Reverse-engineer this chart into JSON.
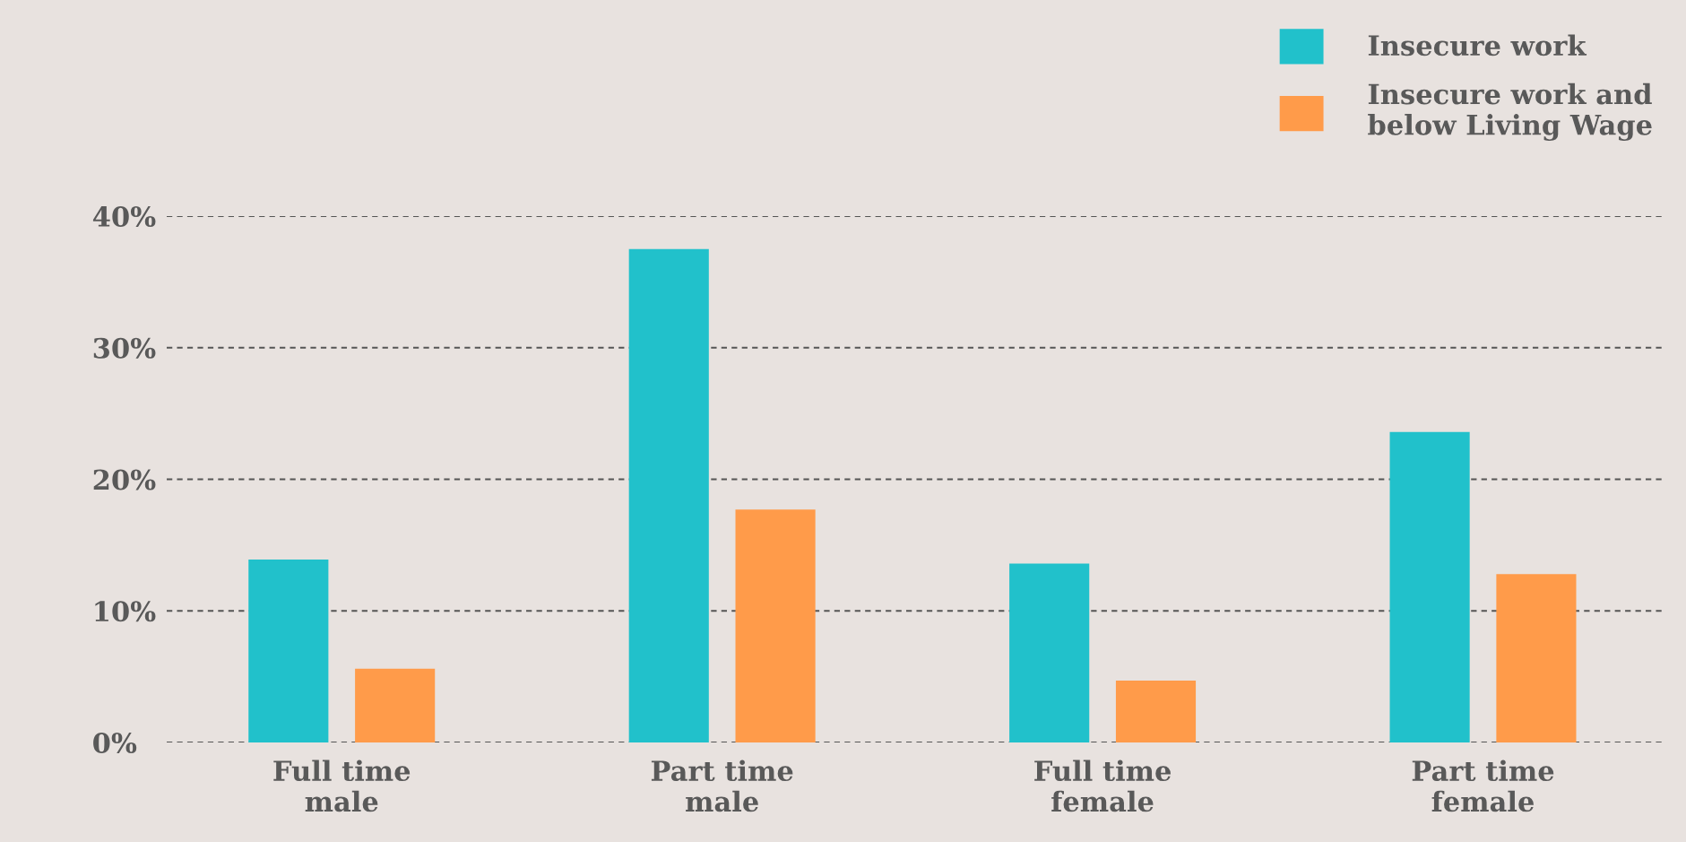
{
  "chart_data": {
    "type": "bar",
    "categories": [
      "Full time\nmale",
      "Part time\nmale",
      "Full time\nfemale",
      "Part time\nfemale"
    ],
    "series": [
      {
        "name": "Insecure work",
        "color": "#21c1cb",
        "values": [
          13.9,
          37.5,
          13.6,
          23.6
        ]
      },
      {
        "name": "Insecure work and\nbelow Living Wage",
        "color": "#ff9b4a",
        "values": [
          5.6,
          17.7,
          4.7,
          12.8
        ]
      }
    ],
    "ylim": [
      0,
      40
    ],
    "yticks": [
      {
        "value": 0,
        "label": "0%"
      },
      {
        "value": 10,
        "label": "10%"
      },
      {
        "value": 20,
        "label": "20%"
      },
      {
        "value": 30,
        "label": "30%"
      },
      {
        "value": 40,
        "label": "40%"
      }
    ],
    "grid": "y",
    "legend": "top right"
  }
}
